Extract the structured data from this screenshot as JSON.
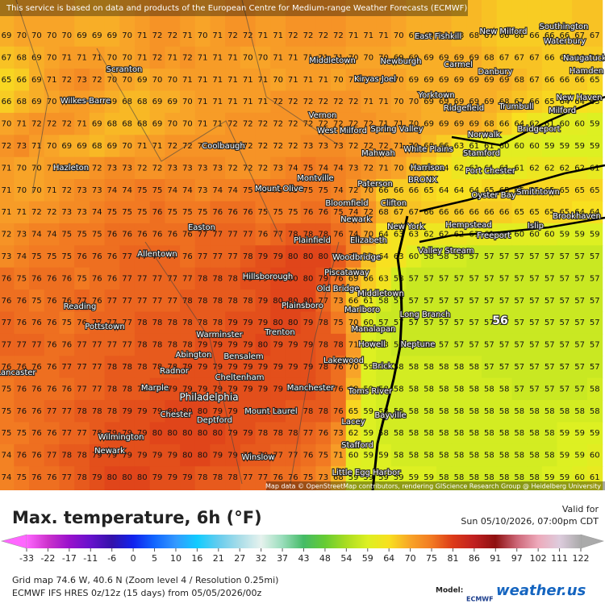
{
  "banner": "This service is based on data and products of the European Centre for Medium-range Weather Forecasts (ECMWF)",
  "attribution": "Map data © OpenStreetMap contributors, rendering GIScience Research Group @ Heidelberg University",
  "title": "Max. temperature, 6h (°F)",
  "valid_label": "Valid for",
  "valid_time": "Sun 05/10/2026, 07:00pm CDT",
  "grid_info": "Grid map 74.6 W, 40.6 N (Zoom level 4 / Resolution 0.25mi)",
  "run_info": "ECMWF IFS HRES 0z/12z (15 days) from 05/05/2026/00z",
  "model_label": "Model:",
  "model": "ECMWF",
  "brand": "weather.us",
  "marker": "56",
  "cities": [
    "East Fishkill",
    "New Milford",
    "Southington",
    "Waterbury",
    "Naugatuck",
    "Middletown",
    "Newburgh",
    "Carmel",
    "Danbury",
    "Hamden",
    "Scranton",
    "Kiryas Joel",
    "Wilkes-Barre",
    "Yorktown",
    "Ridgefield",
    "Trumbull",
    "New Haven",
    "Milford",
    "Vernon",
    "West Milford",
    "Spring Valley",
    "Bridgeport",
    "Norwalk",
    "Coolbaugh",
    "Mahwah",
    "White Plains",
    "Stamford",
    "Hazleton",
    "Harrison",
    "Port Chester",
    "Montville",
    "Paterson",
    "BRONX",
    "Mount Olive",
    "Oyster Bay",
    "Smithtown",
    "Bloomfield",
    "Clifton",
    "Newark",
    "New York",
    "Hempstead",
    "Islip",
    "Brookhaven",
    "Easton",
    "Freeport",
    "Elizabeth",
    "Plainfield",
    "Valley Stream",
    "Allentown",
    "Woodbridge",
    "Piscataway",
    "Hillsborough",
    "Old Bridge",
    "Middletown",
    "Plainsboro",
    "Reading",
    "Marlboro",
    "Long Branch",
    "Pottstown",
    "Manalapan",
    "Warminster",
    "Trenton",
    "Abington",
    "Bensalem",
    "Howell",
    "Neptune",
    "Lakewood",
    "Radnor",
    "Lancaster",
    "Cheltenham",
    "Brick",
    "Manchester",
    "Marple",
    "Toms River",
    "Philadelphia",
    "Mount Laurel",
    "Chester",
    "Deptford",
    "Bayville",
    "Lacey",
    "Wilmington",
    "Stafford",
    "Newark",
    "Winslow",
    "Little Egg Harbor"
  ],
  "scale": [
    {
      "value": -33,
      "color": "#ff66ff"
    },
    {
      "value": -22,
      "color": "#cc33cc"
    },
    {
      "value": -17,
      "color": "#9911cc"
    },
    {
      "value": -11,
      "color": "#6611cc"
    },
    {
      "value": -6,
      "color": "#3311aa"
    },
    {
      "value": 0,
      "color": "#1122ee"
    },
    {
      "value": 5,
      "color": "#1166ff"
    },
    {
      "value": 10,
      "color": "#3399ff"
    },
    {
      "value": 16,
      "color": "#11ccff"
    },
    {
      "value": 21,
      "color": "#66ccee"
    },
    {
      "value": 27,
      "color": "#aadde8"
    },
    {
      "value": 32,
      "color": "#e6f2ee"
    },
    {
      "value": 37,
      "color": "#99ddbb"
    },
    {
      "value": 43,
      "color": "#44bb66"
    },
    {
      "value": 48,
      "color": "#66cc33"
    },
    {
      "value": 54,
      "color": "#aadd22"
    },
    {
      "value": 59,
      "color": "#ddf022"
    },
    {
      "value": 64,
      "color": "#f8e020"
    },
    {
      "value": 70,
      "color": "#f8a428"
    },
    {
      "value": 75,
      "color": "#f27a22"
    },
    {
      "value": 81,
      "color": "#dc3a18"
    },
    {
      "value": 86,
      "color": "#c02020"
    },
    {
      "value": 91,
      "color": "#8e1010"
    },
    {
      "value": 97,
      "color": "#cc6677"
    },
    {
      "value": 102,
      "color": "#eeaabb"
    },
    {
      "value": 111,
      "color": "#ddccdd"
    },
    {
      "value": 122,
      "color": "#aaaaaa"
    }
  ],
  "grid": {
    "rows": [
      [
        69,
        70,
        70,
        70,
        70,
        69,
        69,
        69,
        70,
        71,
        72,
        72,
        71,
        70,
        71,
        72,
        72,
        71,
        71,
        72,
        72,
        72,
        72,
        71,
        71,
        71,
        70,
        69,
        69,
        69,
        68,
        68,
        67,
        66,
        66,
        66,
        66,
        66,
        67,
        67
      ],
      [
        67,
        68,
        69,
        70,
        71,
        71,
        71,
        70,
        70,
        71,
        72,
        71,
        72,
        71,
        71,
        71,
        70,
        70,
        71,
        71,
        71,
        71,
        71,
        70,
        70,
        70,
        69,
        69,
        69,
        69,
        69,
        69,
        68,
        67,
        67,
        67,
        66,
        66,
        66,
        66
      ],
      [
        65,
        66,
        69,
        71,
        72,
        73,
        72,
        70,
        70,
        69,
        70,
        70,
        71,
        71,
        71,
        71,
        71,
        71,
        70,
        71,
        71,
        71,
        70,
        71,
        71,
        71,
        70,
        69,
        69,
        69,
        69,
        69,
        69,
        69,
        68,
        67,
        66,
        66,
        66,
        65
      ],
      [
        66,
        68,
        69,
        70,
        71,
        71,
        70,
        69,
        68,
        68,
        69,
        69,
        70,
        71,
        71,
        71,
        71,
        71,
        72,
        72,
        72,
        72,
        72,
        72,
        71,
        71,
        70,
        70,
        69,
        69,
        69,
        69,
        69,
        68,
        67,
        66,
        65,
        64,
        64,
        63
      ],
      [
        70,
        71,
        72,
        72,
        72,
        71,
        69,
        68,
        68,
        68,
        69,
        70,
        70,
        71,
        71,
        72,
        72,
        72,
        72,
        72,
        72,
        72,
        72,
        72,
        72,
        71,
        71,
        70,
        69,
        69,
        69,
        69,
        68,
        66,
        64,
        62,
        61,
        60,
        60,
        59
      ],
      [
        72,
        73,
        71,
        70,
        69,
        69,
        68,
        69,
        70,
        71,
        71,
        72,
        72,
        72,
        72,
        72,
        72,
        72,
        72,
        72,
        73,
        73,
        73,
        72,
        72,
        72,
        71,
        70,
        68,
        66,
        63,
        61,
        61,
        60,
        60,
        60,
        59,
        59,
        59,
        59
      ],
      [
        71,
        70,
        70,
        71,
        71,
        71,
        72,
        73,
        73,
        72,
        72,
        73,
        73,
        73,
        73,
        72,
        72,
        72,
        73,
        74,
        75,
        74,
        74,
        73,
        72,
        71,
        70,
        68,
        66,
        64,
        62,
        61,
        61,
        61,
        61,
        62,
        62,
        62,
        62,
        61
      ],
      [
        71,
        70,
        70,
        71,
        72,
        73,
        73,
        74,
        74,
        75,
        75,
        74,
        74,
        73,
        74,
        74,
        75,
        75,
        75,
        75,
        75,
        75,
        74,
        72,
        70,
        66,
        66,
        66,
        65,
        64,
        64,
        64,
        65,
        65,
        65,
        65,
        65,
        65,
        65,
        65
      ],
      [
        71,
        71,
        72,
        72,
        73,
        73,
        74,
        75,
        75,
        75,
        76,
        75,
        75,
        75,
        76,
        76,
        76,
        75,
        75,
        75,
        76,
        76,
        75,
        74,
        72,
        68,
        67,
        67,
        66,
        66,
        66,
        66,
        66,
        66,
        65,
        65,
        65,
        65,
        64,
        64
      ],
      [
        72,
        73,
        74,
        74,
        75,
        75,
        75,
        76,
        76,
        76,
        76,
        76,
        76,
        77,
        77,
        77,
        77,
        76,
        77,
        78,
        78,
        78,
        76,
        74,
        70,
        64,
        63,
        63,
        62,
        62,
        62,
        61,
        61,
        60,
        60,
        60,
        60,
        59,
        59,
        59
      ],
      [
        73,
        74,
        75,
        75,
        75,
        76,
        76,
        76,
        77,
        77,
        77,
        77,
        76,
        77,
        77,
        77,
        78,
        79,
        79,
        80,
        80,
        80,
        78,
        74,
        67,
        64,
        63,
        60,
        58,
        58,
        58,
        57,
        57,
        57,
        57,
        57,
        57,
        57,
        57,
        57
      ],
      [
        76,
        75,
        76,
        76,
        76,
        75,
        76,
        76,
        77,
        77,
        77,
        77,
        77,
        78,
        78,
        78,
        79,
        79,
        80,
        80,
        80,
        79,
        76,
        69,
        66,
        63,
        58,
        57,
        57,
        57,
        57,
        57,
        57,
        57,
        57,
        57,
        57,
        57,
        57,
        57
      ],
      [
        76,
        76,
        75,
        76,
        76,
        77,
        76,
        77,
        77,
        77,
        77,
        77,
        78,
        78,
        78,
        78,
        78,
        79,
        80,
        80,
        80,
        77,
        73,
        66,
        61,
        58,
        57,
        57,
        57,
        57,
        57,
        57,
        57,
        57,
        57,
        57,
        57,
        57,
        57,
        57
      ],
      [
        77,
        76,
        76,
        76,
        75,
        76,
        77,
        77,
        77,
        78,
        78,
        78,
        78,
        78,
        78,
        79,
        79,
        79,
        80,
        80,
        79,
        78,
        75,
        70,
        60,
        57,
        57,
        57,
        57,
        57,
        57,
        57,
        57,
        57,
        57,
        57,
        57,
        57,
        57,
        57
      ],
      [
        77,
        77,
        77,
        76,
        76,
        77,
        77,
        77,
        77,
        78,
        78,
        78,
        78,
        79,
        79,
        79,
        79,
        80,
        79,
        79,
        79,
        78,
        78,
        71,
        59,
        58,
        57,
        57,
        57,
        57,
        57,
        57,
        57,
        57,
        57,
        57,
        57,
        57,
        57,
        57
      ],
      [
        76,
        76,
        76,
        76,
        77,
        77,
        77,
        78,
        78,
        78,
        78,
        78,
        79,
        79,
        79,
        79,
        79,
        79,
        79,
        79,
        79,
        78,
        76,
        70,
        59,
        58,
        58,
        58,
        58,
        58,
        58,
        58,
        57,
        57,
        57,
        57,
        57,
        57,
        57,
        57
      ],
      [
        75,
        76,
        76,
        76,
        76,
        77,
        77,
        78,
        78,
        78,
        79,
        79,
        79,
        79,
        79,
        79,
        79,
        79,
        79,
        79,
        79,
        78,
        76,
        68,
        59,
        58,
        58,
        58,
        58,
        58,
        58,
        58,
        58,
        58,
        57,
        57,
        57,
        57,
        57,
        58
      ],
      [
        75,
        76,
        76,
        77,
        77,
        78,
        78,
        78,
        79,
        79,
        79,
        80,
        80,
        80,
        79,
        79,
        79,
        79,
        79,
        78,
        78,
        78,
        76,
        65,
        59,
        58,
        58,
        58,
        58,
        58,
        58,
        58,
        58,
        58,
        58,
        58,
        58,
        58,
        58,
        58
      ],
      [
        75,
        75,
        76,
        76,
        77,
        77,
        78,
        79,
        79,
        79,
        80,
        80,
        80,
        80,
        80,
        79,
        79,
        78,
        78,
        78,
        77,
        76,
        73,
        62,
        59,
        58,
        58,
        58,
        58,
        58,
        58,
        58,
        58,
        58,
        58,
        58,
        58,
        59,
        59,
        59
      ],
      [
        74,
        76,
        76,
        77,
        78,
        78,
        79,
        79,
        79,
        79,
        79,
        79,
        80,
        80,
        79,
        79,
        78,
        78,
        77,
        77,
        76,
        75,
        71,
        60,
        59,
        59,
        58,
        58,
        58,
        58,
        58,
        58,
        58,
        58,
        58,
        58,
        58,
        59,
        59,
        60
      ],
      [
        74,
        75,
        76,
        76,
        77,
        78,
        79,
        80,
        80,
        80,
        79,
        79,
        79,
        78,
        78,
        78,
        77,
        77,
        76,
        76,
        75,
        73,
        68,
        59,
        59,
        59,
        59,
        59,
        59,
        58,
        58,
        58,
        58,
        58,
        58,
        58,
        59,
        59,
        60,
        61
      ]
    ]
  }
}
